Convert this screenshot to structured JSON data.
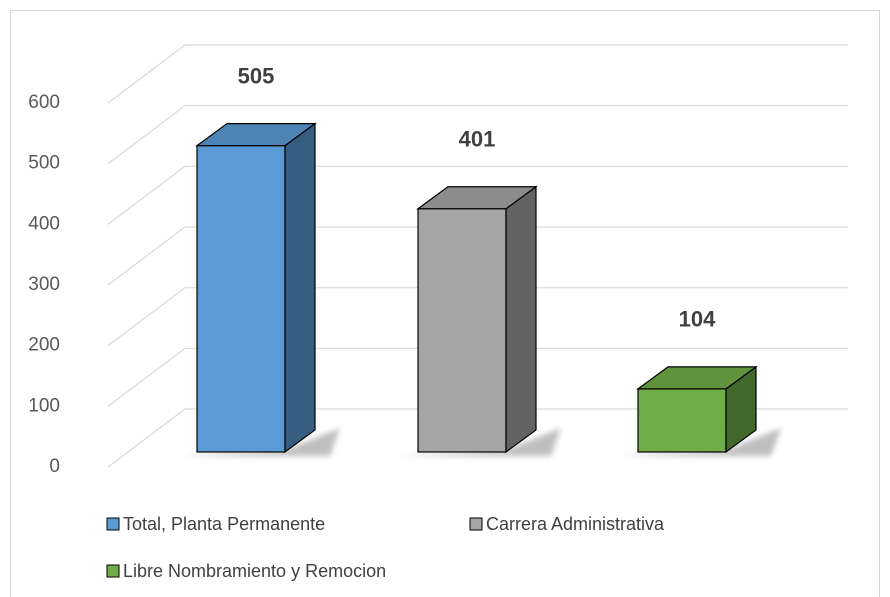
{
  "chart_data": {
    "type": "bar3d",
    "series": [
      {
        "name": "Total, Planta Permanente",
        "color": "#5b9bd5",
        "values": [
          505
        ]
      },
      {
        "name": "Carrera Administrativa",
        "color": "#a5a5a5",
        "values": [
          401
        ]
      },
      {
        "name": "Libre Nombramiento y Remocion",
        "color": "#70ad47",
        "values": [
          104
        ]
      }
    ],
    "ylim": [
      0,
      600
    ],
    "yticks": [
      0,
      100,
      200,
      300,
      400,
      500,
      600
    ],
    "grid": true
  }
}
